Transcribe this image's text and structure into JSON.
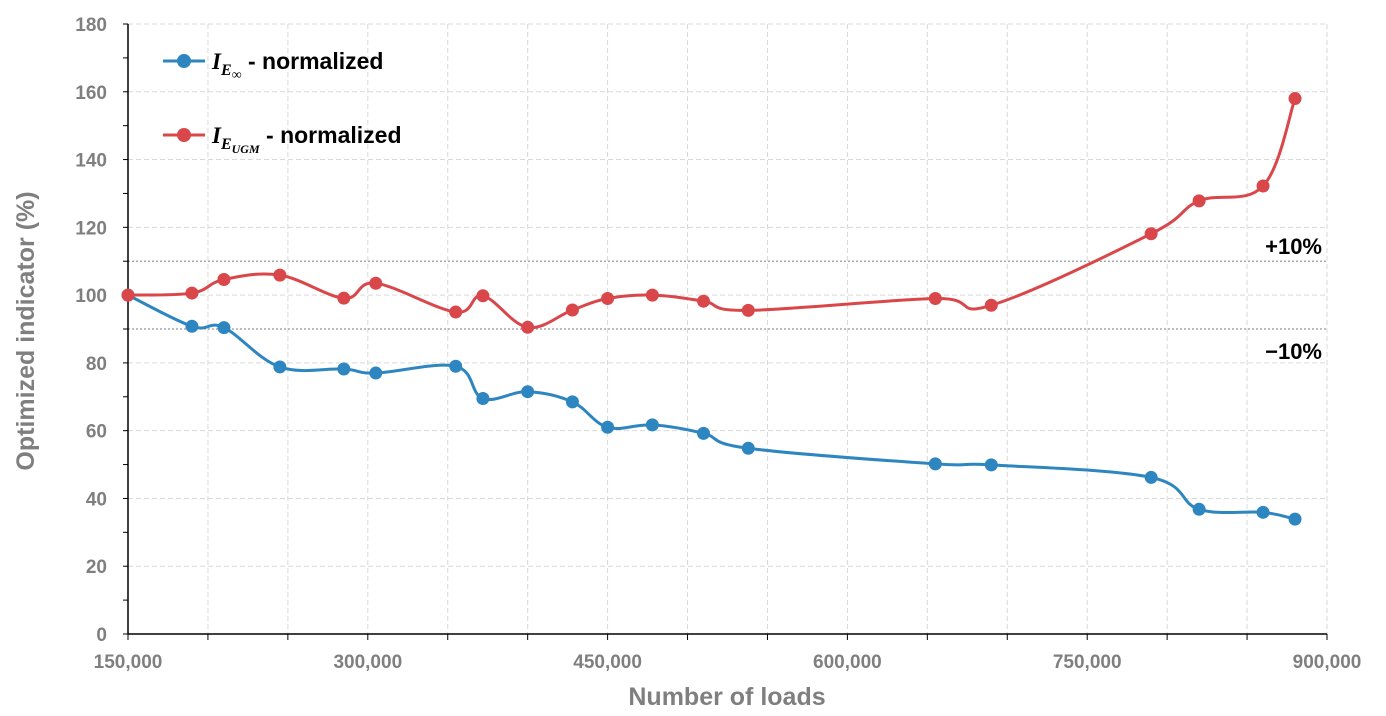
{
  "chart_data": {
    "type": "line",
    "xlabel": "Number of loads",
    "ylabel": "Optimized indicator (%)",
    "xlim": [
      150000,
      900000
    ],
    "ylim": [
      0,
      180
    ],
    "x_ticks": [
      {
        "value": 150000,
        "label": "150,000"
      },
      {
        "value": 300000,
        "label": "300,000"
      },
      {
        "value": 450000,
        "label": "450,000"
      },
      {
        "value": 600000,
        "label": "600,000"
      },
      {
        "value": 750000,
        "label": "750,000"
      },
      {
        "value": 900000,
        "label": "900,000"
      }
    ],
    "x_minor_step": 50000,
    "y_ticks": [
      0,
      20,
      40,
      60,
      80,
      100,
      120,
      140,
      160,
      180
    ],
    "y_minor_step": 10,
    "grid": true,
    "legend_position": "top-left",
    "series": [
      {
        "name": "I_E∞ - normalized",
        "legend": {
          "symbol": "I",
          "sub": "E",
          "subsub": "∞",
          "suffix": " - normalized"
        },
        "color": "#2e86c1",
        "x": [
          150000,
          190000,
          210000,
          245000,
          285000,
          305000,
          355000,
          372000,
          400000,
          428000,
          450000,
          478000,
          510000,
          538000,
          655000,
          690000,
          790000,
          820000,
          860000,
          880000
        ],
        "values": [
          100,
          90.8,
          90.4,
          78.8,
          78.2,
          77.0,
          79.0,
          69.5,
          71.5,
          68.5,
          61.0,
          61.7,
          59.2,
          54.8,
          50.2,
          49.9,
          46.2,
          36.8,
          35.9,
          33.9
        ]
      },
      {
        "name": "I_E_UGM - normalized",
        "legend": {
          "symbol": "I",
          "sub": "E",
          "subsub": "UGM",
          "suffix": " - normalized"
        },
        "color": "#d9474a",
        "x": [
          150000,
          190000,
          210000,
          245000,
          285000,
          305000,
          355000,
          372000,
          400000,
          428000,
          450000,
          478000,
          510000,
          538000,
          655000,
          690000,
          790000,
          820000,
          860000,
          880000
        ],
        "values": [
          100,
          100.6,
          104.6,
          105.9,
          99.1,
          103.5,
          95.0,
          99.8,
          90.5,
          95.6,
          99.0,
          100.0,
          98.2,
          95.5,
          99.0,
          97.0,
          118.1,
          127.8,
          132.2,
          158.0
        ]
      }
    ],
    "reference_lines": [
      {
        "y": 110,
        "label": "+10%"
      },
      {
        "y": 90,
        "label": "−10%"
      }
    ]
  }
}
